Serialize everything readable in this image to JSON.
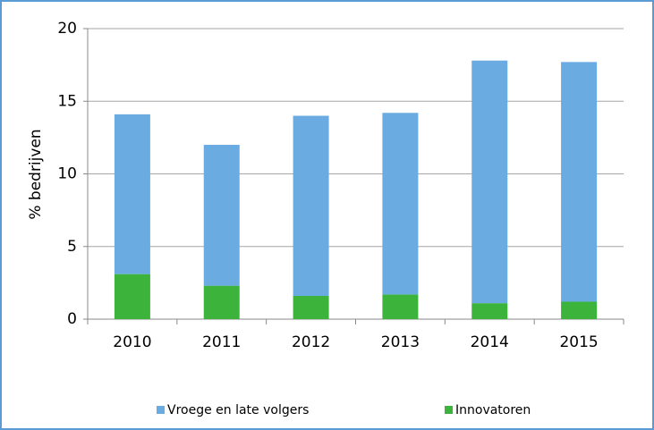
{
  "chart_data": {
    "type": "stacked_bar",
    "y_label": "% bedrijven",
    "categories": [
      "2010",
      "2011",
      "2012",
      "2013",
      "2014",
      "2015"
    ],
    "series": [
      {
        "name": "Vroege en late volgers",
        "color": "#6aabe2",
        "values": [
          11.0,
          9.7,
          12.4,
          12.5,
          16.7,
          16.5
        ]
      },
      {
        "name": "Innovatoren",
        "color": "#3cb43c",
        "values": [
          3.1,
          2.3,
          1.6,
          1.7,
          1.1,
          1.2
        ]
      }
    ],
    "ylim": [
      0,
      20
    ],
    "yticks": [
      0,
      5,
      10,
      15,
      20
    ],
    "grid": true,
    "legend": "bottom"
  }
}
